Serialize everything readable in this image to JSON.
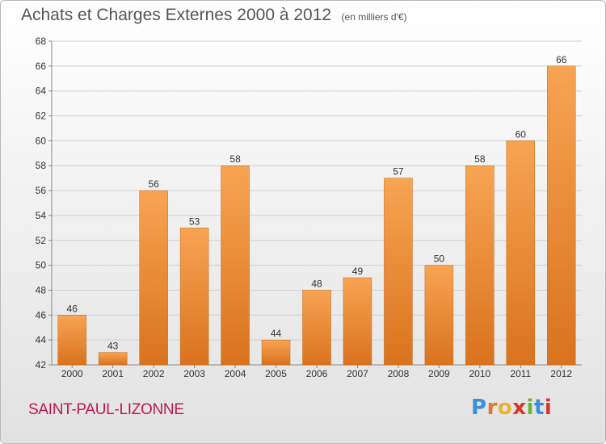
{
  "title": "Achats et Charges Externes 2000 à 2012",
  "subtitle": "(en milliers d'€)",
  "commune": "SAINT-PAUL-LIZONNE",
  "logo": {
    "letters": [
      "P",
      "r",
      "o",
      "x",
      "i",
      "t",
      "i"
    ],
    "colors": [
      "#3a8fd9",
      "#e6732a",
      "#e8b22e",
      "#d9342b",
      "#6ab33a",
      "#3a8fd9",
      "#d9342b"
    ]
  },
  "chart_data": {
    "type": "bar",
    "title": "Achats et Charges Externes 2000 à 2012",
    "subtitle": "(en milliers d'€)",
    "categories": [
      "2000",
      "2001",
      "2002",
      "2003",
      "2004",
      "2005",
      "2006",
      "2007",
      "2008",
      "2009",
      "2010",
      "2011",
      "2012"
    ],
    "values": [
      46,
      43,
      56,
      53,
      58,
      44,
      48,
      49,
      57,
      50,
      58,
      60,
      66
    ],
    "ylim": [
      42,
      68
    ],
    "yticks": [
      42,
      44,
      46,
      48,
      50,
      52,
      54,
      56,
      58,
      60,
      62,
      64,
      66,
      68
    ],
    "grid": true,
    "bar_color": "#f0913a"
  }
}
